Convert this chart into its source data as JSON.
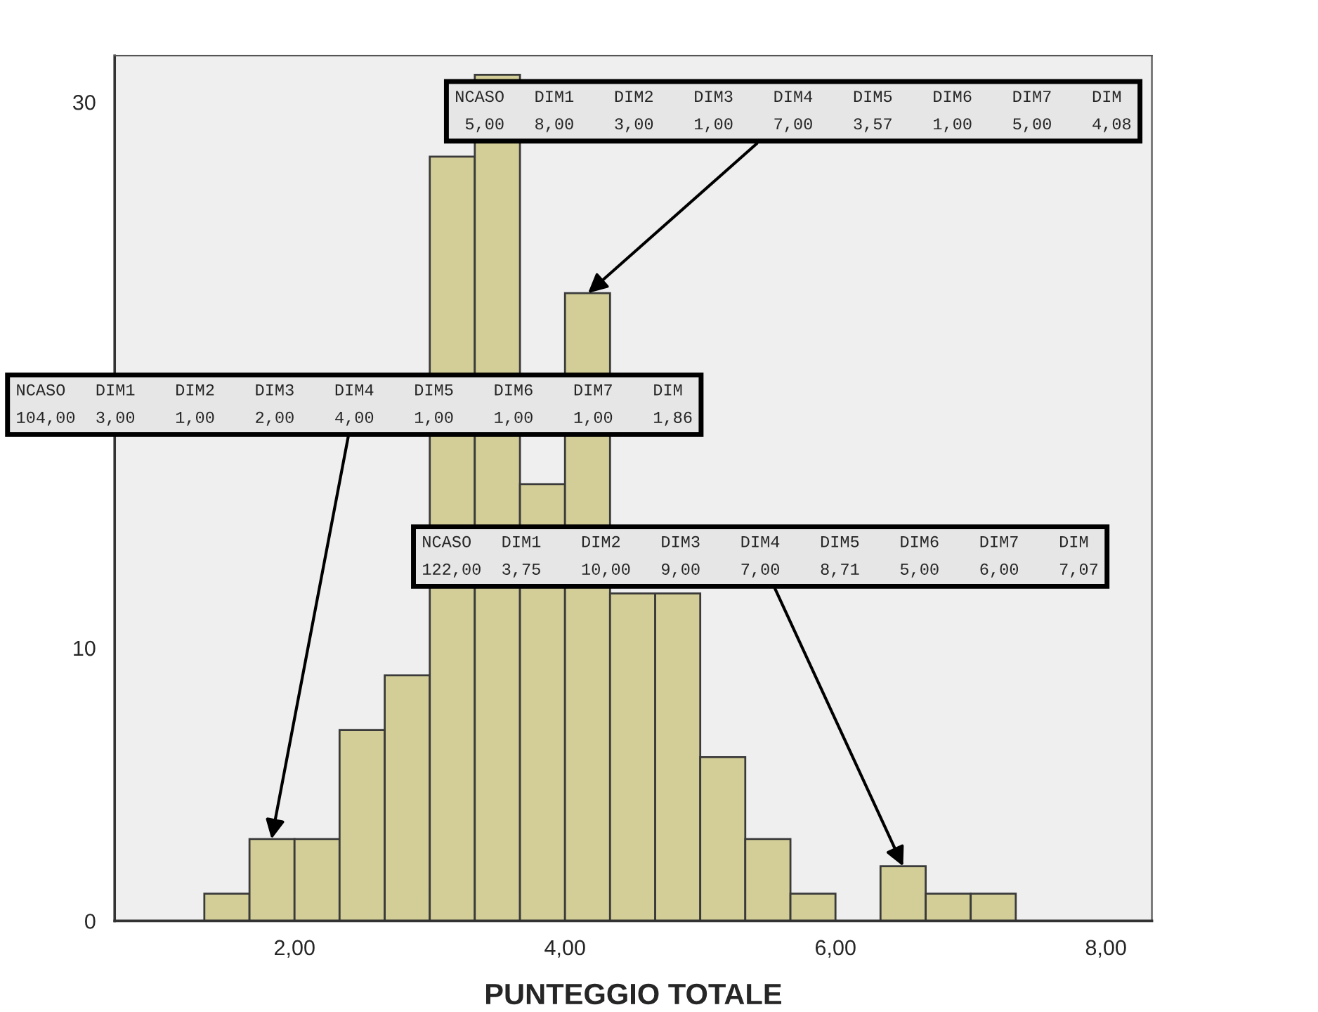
{
  "chart_data": {
    "type": "histogram",
    "xlabel": "PUNTEGGIO TOTALE",
    "bins": [
      1.333,
      1.667,
      2.0,
      2.333,
      2.667,
      3.0,
      3.333,
      3.667,
      4.0,
      4.333,
      4.667,
      5.0,
      5.333,
      5.667,
      6.0,
      6.333,
      6.667,
      7.0,
      7.333
    ],
    "values": [
      1,
      3,
      3,
      7,
      9,
      28,
      31,
      16,
      23,
      12,
      12,
      6,
      3,
      1,
      0,
      2,
      1,
      1
    ],
    "color": "#d3ce97",
    "xlim": [
      0.67,
      8.34
    ],
    "ylim": [
      0,
      31.7
    ],
    "xticks": [
      {
        "value": 2,
        "label": "2,00"
      },
      {
        "value": 4,
        "label": "4,00"
      },
      {
        "value": 6,
        "label": "6,00"
      },
      {
        "value": 8,
        "label": "8,00"
      }
    ],
    "yticks": [
      0,
      10,
      30
    ],
    "grid": false,
    "legend": false,
    "annotations": [
      {
        "text": "NCASO   DIM1    DIM2    DIM3    DIM4    DIM5    DIM6    DIM7    DIM\n 5,00   8,00    3,00    1,00    7,00    3,57    1,00    5,00    4,08",
        "x": 4.17,
        "y": 23
      },
      {
        "text": "NCASO   DIM1    DIM2    DIM3    DIM4    DIM5    DIM6    DIM7    DIM\n104,00  3,00    1,00    2,00    4,00    1,00    1,00    1,00    1,86",
        "x": 1.83,
        "y": 3
      },
      {
        "text": "NCASO   DIM1    DIM2    DIM3    DIM4    DIM5    DIM6    DIM7    DIM\n122,00  3,75    10,00   9,00    7,00    8,71    5,00    6,00    7,07",
        "x": 6.5,
        "y": 2
      }
    ]
  }
}
